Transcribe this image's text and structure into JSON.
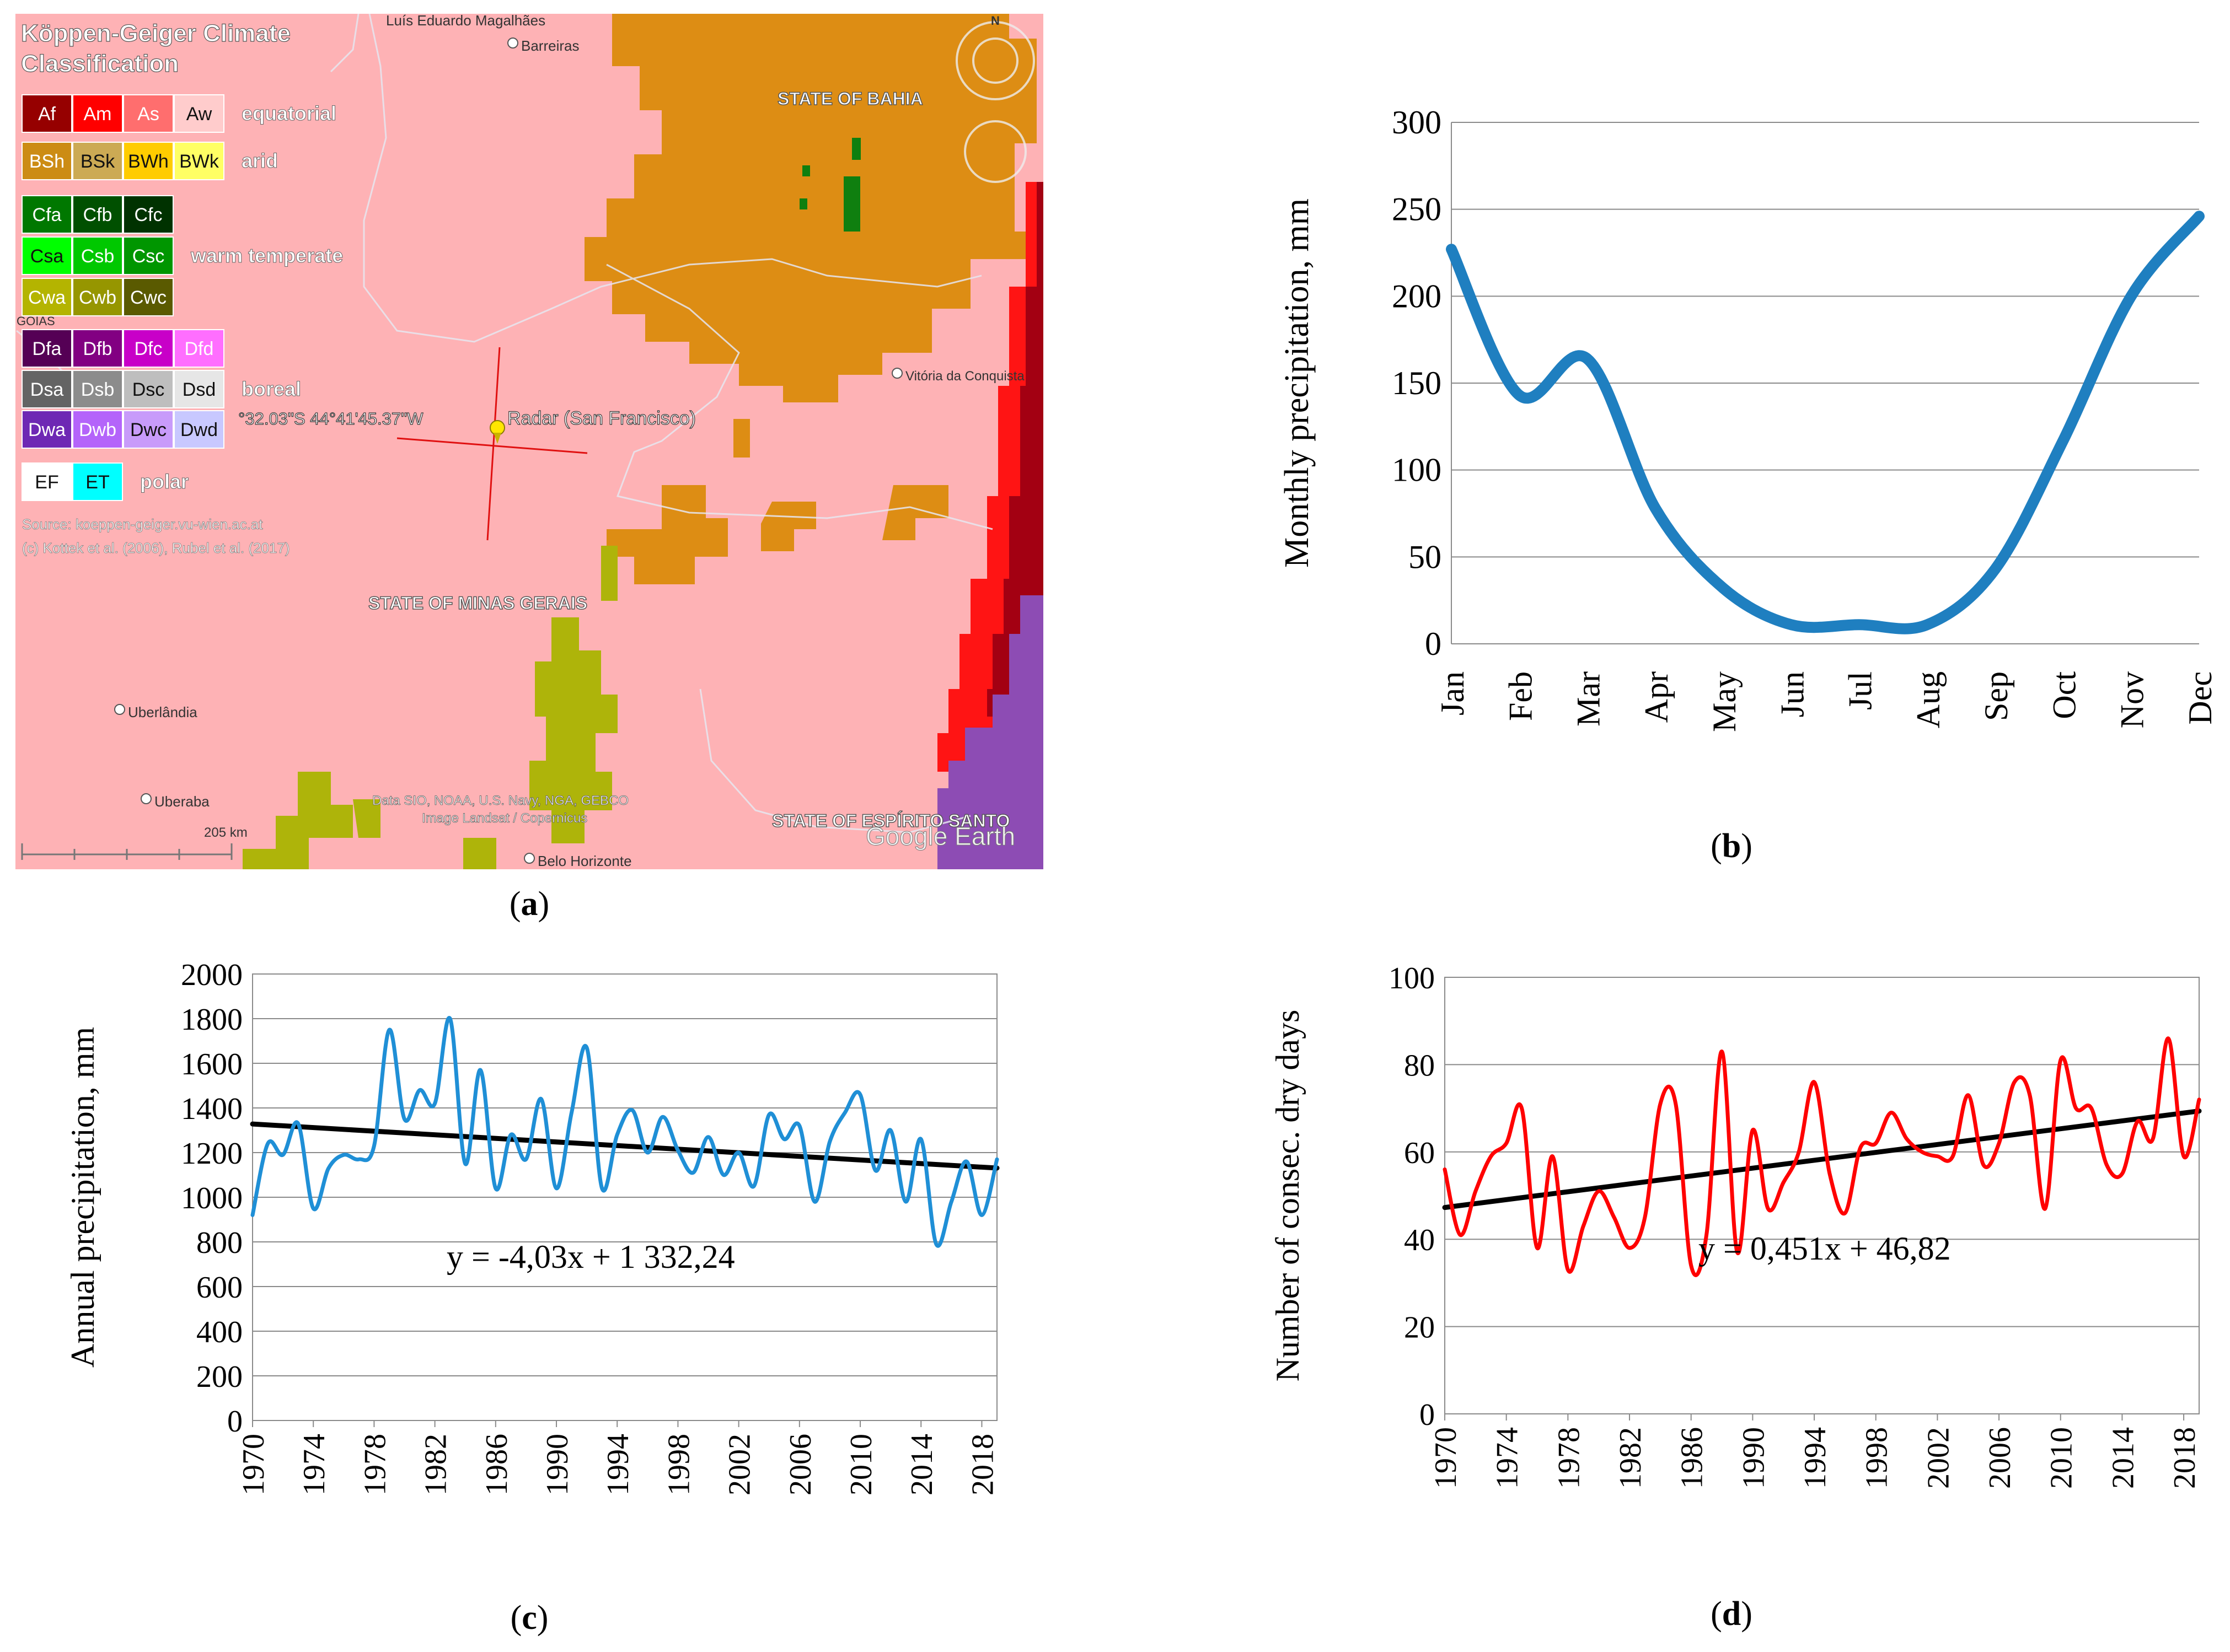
{
  "panels": {
    "a": {
      "label_open": "(",
      "label": "a",
      "label_close": ")",
      "map": {
        "title_line1": "Köppen-Geiger Climate",
        "title_line2": "Classification",
        "legend_groups": [
          {
            "name": "equatorial",
            "codes": [
              {
                "code": "Af",
                "color": "#960000"
              },
              {
                "code": "Am",
                "color": "#ff0000"
              },
              {
                "code": "As",
                "color": "#ff6e6e"
              },
              {
                "code": "Aw",
                "color": "#ffcccc"
              }
            ]
          },
          {
            "name": "arid",
            "codes": [
              {
                "code": "BSh",
                "color": "#cc8c14"
              },
              {
                "code": "BSk",
                "color": "#ccaa54"
              },
              {
                "code": "BWh",
                "color": "#ffcc00"
              },
              {
                "code": "BWk",
                "color": "#ffff64"
              }
            ]
          },
          {
            "name": "",
            "codes": [
              {
                "code": "Cfa",
                "color": "#007800"
              },
              {
                "code": "Cfb",
                "color": "#005000"
              },
              {
                "code": "Cfc",
                "color": "#003200"
              }
            ]
          },
          {
            "name": "warm temperate",
            "codes": [
              {
                "code": "Csa",
                "color": "#00ff00"
              },
              {
                "code": "Csb",
                "color": "#00c800"
              },
              {
                "code": "Csc",
                "color": "#009600"
              }
            ]
          },
          {
            "name": "",
            "codes": [
              {
                "code": "Cwa",
                "color": "#b4b400"
              },
              {
                "code": "Cwb",
                "color": "#969600"
              },
              {
                "code": "Cwc",
                "color": "#5a5a00"
              }
            ]
          },
          {
            "name": "",
            "codes": [
              {
                "code": "Dfa",
                "color": "#550055"
              },
              {
                "code": "Dfb",
                "color": "#820082"
              },
              {
                "code": "Dfc",
                "color": "#c800c8"
              },
              {
                "code": "Dfd",
                "color": "#ff6eff"
              }
            ]
          },
          {
            "name": "boreal",
            "codes": [
              {
                "code": "Dsa",
                "color": "#646464"
              },
              {
                "code": "Dsb",
                "color": "#8c8c8c"
              },
              {
                "code": "Dsc",
                "color": "#bebebe"
              },
              {
                "code": "Dsd",
                "color": "#e6e6e6"
              }
            ]
          },
          {
            "name": "",
            "codes": [
              {
                "code": "Dwa",
                "color": "#6e28b4"
              },
              {
                "code": "Dwb",
                "color": "#b464fa"
              },
              {
                "code": "Dwc",
                "color": "#c89bfa"
              },
              {
                "code": "Dwd",
                "color": "#c8c8ff"
              }
            ]
          },
          {
            "name": "polar",
            "codes": [
              {
                "code": "EF",
                "color": "#ffffff"
              },
              {
                "code": "ET",
                "color": "#00ffff"
              }
            ]
          }
        ],
        "source_line1": "Source: koeppen-geiger.vu-wien.ac.at",
        "source_line2": "(c) Kottek et al. (2006), Rubel et al. (2017)",
        "goias": "GOIÁS",
        "places": {
          "luis_eduardo": "Luís Eduardo Magalhães",
          "barreiras": "Barreiras",
          "bahia": "STATE OF BAHIA",
          "vitoria": "Vitória da Conquista",
          "minas": "STATE OF MINAS GERAIS",
          "uberlandia": "Uberlândia",
          "uberaba": "Uberaba",
          "espirito": "STATE OF ESPÍRITO SANTO",
          "belo": "Belo Horizonte"
        },
        "coord_text": "°32.03\"S  44°41'45.37\"W",
        "radar_label": "Radar (San Francisco)",
        "scale_label": "205 km",
        "attribution1": "Data SIO, NOAA, U.S. Navy, NGA, GEBCO",
        "attribution2": "Image Landsat / Copernicus",
        "google_earth": "Google Earth",
        "north": "N"
      }
    },
    "b": {
      "label_open": "(",
      "label": "b",
      "label_close": ")"
    },
    "c": {
      "label_open": "(",
      "label": "c",
      "label_close": ")"
    },
    "d": {
      "label_open": "(",
      "label": "d",
      "label_close": ")"
    }
  },
  "chart_data": [
    {
      "id": "b",
      "type": "line",
      "title": "",
      "xlabel": "",
      "ylabel": "Monthly precipitation, mm",
      "ylim": [
        0,
        300
      ],
      "yticks": [
        0,
        50,
        100,
        150,
        200,
        250,
        300
      ],
      "grid": true,
      "categories": [
        "Jan",
        "Feb",
        "Mar",
        "Apr",
        "May",
        "Jun",
        "Jul",
        "Aug",
        "Sep",
        "Oct",
        "Nov",
        "Dec"
      ],
      "series": [
        {
          "name": "Monthly precipitation",
          "color": "#1f7fc0",
          "values": [
            227,
            143,
            164,
            78,
            32,
            11,
            11,
            11,
            43,
            117,
            200,
            246
          ]
        }
      ]
    },
    {
      "id": "c",
      "type": "line",
      "title": "",
      "xlabel": "",
      "ylabel": "Annual precipitation, mm",
      "ylim": [
        0,
        2000
      ],
      "yticks": [
        0,
        200,
        400,
        600,
        800,
        1000,
        1200,
        1400,
        1600,
        1800,
        2000
      ],
      "xlim": [
        1970,
        2019
      ],
      "xticks": [
        1970,
        1974,
        1978,
        1982,
        1986,
        1990,
        1994,
        1998,
        2002,
        2006,
        2010,
        2014,
        2018
      ],
      "grid": true,
      "annotation": "y = -4,03x + 1 332,24",
      "trend": {
        "slope": -4.03,
        "intercept": 1332.24,
        "color": "#000000"
      },
      "series": [
        {
          "name": "Annual precipitation",
          "color": "#1f8fd6",
          "x": [
            1970,
            1971,
            1972,
            1973,
            1974,
            1975,
            1976,
            1977,
            1978,
            1979,
            1980,
            1981,
            1982,
            1983,
            1984,
            1985,
            1986,
            1987,
            1988,
            1989,
            1990,
            1991,
            1992,
            1993,
            1994,
            1995,
            1996,
            1997,
            1998,
            1999,
            2000,
            2001,
            2002,
            2003,
            2004,
            2005,
            2006,
            2007,
            2008,
            2009,
            2010,
            2011,
            2012,
            2013,
            2014,
            2015,
            2016,
            2017,
            2018,
            2019
          ],
          "values": [
            920,
            1240,
            1190,
            1330,
            950,
            1130,
            1190,
            1170,
            1230,
            1750,
            1350,
            1480,
            1420,
            1800,
            1150,
            1570,
            1040,
            1280,
            1170,
            1440,
            1040,
            1380,
            1670,
            1040,
            1280,
            1390,
            1200,
            1360,
            1210,
            1110,
            1270,
            1100,
            1200,
            1050,
            1370,
            1260,
            1320,
            980,
            1250,
            1380,
            1460,
            1120,
            1300,
            980,
            1260,
            790,
            980,
            1160,
            920,
            1170
          ]
        }
      ]
    },
    {
      "id": "d",
      "type": "line",
      "title": "",
      "xlabel": "",
      "ylabel": "Number of consec. dry days",
      "ylim": [
        0,
        100
      ],
      "yticks": [
        0,
        20,
        40,
        60,
        80,
        100
      ],
      "xlim": [
        1970,
        2019
      ],
      "xticks": [
        1970,
        1974,
        1978,
        1982,
        1986,
        1990,
        1994,
        1998,
        2002,
        2006,
        2010,
        2014,
        2018
      ],
      "grid": true,
      "annotation": "y = 0,451x + 46,82",
      "trend": {
        "slope": 0.451,
        "intercept": 46.82,
        "color": "#000000"
      },
      "series": [
        {
          "name": "Consecutive dry days",
          "color": "#ff0000",
          "x": [
            1970,
            1971,
            1972,
            1973,
            1974,
            1975,
            1976,
            1977,
            1978,
            1979,
            1980,
            1981,
            1982,
            1983,
            1984,
            1985,
            1986,
            1987,
            1988,
            1989,
            1990,
            1991,
            1992,
            1993,
            1994,
            1995,
            1996,
            1997,
            1998,
            1999,
            2000,
            2001,
            2002,
            2003,
            2004,
            2005,
            2006,
            2007,
            2008,
            2009,
            2010,
            2011,
            2012,
            2013,
            2014,
            2015,
            2016,
            2017,
            2018,
            2019
          ],
          "values": [
            56,
            41,
            51,
            59,
            62,
            70,
            38,
            59,
            33,
            43,
            51,
            45,
            38,
            45,
            71,
            71,
            34,
            41,
            83,
            37,
            65,
            47,
            53,
            60,
            76,
            55,
            46,
            61,
            62,
            69,
            63,
            60,
            59,
            59,
            73,
            57,
            62,
            76,
            73,
            47,
            81,
            70,
            70,
            57,
            55,
            67,
            63,
            86,
            59,
            72
          ]
        }
      ]
    }
  ]
}
